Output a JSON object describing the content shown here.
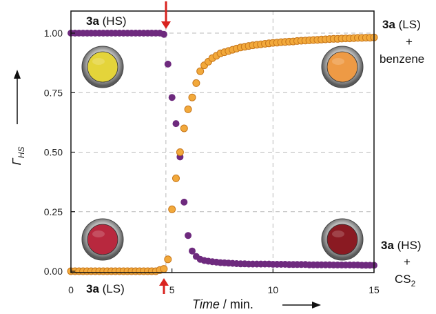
{
  "chart_data": {
    "type": "scatter",
    "xlim": [
      0,
      15
    ],
    "ylim": [
      0,
      1.05
    ],
    "xticks": [
      {
        "value": 0,
        "label": "0"
      },
      {
        "value": 5,
        "label": "5"
      },
      {
        "value": 10,
        "label": "10"
      },
      {
        "value": 15,
        "label": "15"
      }
    ],
    "yticks": [
      {
        "value": 0,
        "label": "0.00"
      },
      {
        "value": 0.25,
        "label": "0.25"
      },
      {
        "value": 0.5,
        "label": "0.50"
      },
      {
        "value": 0.75,
        "label": "0.75"
      },
      {
        "value": 1.0,
        "label": "1.00"
      }
    ],
    "grid": true,
    "x_label": {
      "italic": "Time",
      "rest": " / min."
    },
    "y_label": {
      "symbol": "Γ",
      "subscript": "HS"
    },
    "event_time": 4.7,
    "colors": {
      "orange_fill": "#F2A93B",
      "orange_edge": "#C7771C",
      "purple": "#6E2A7E",
      "arrow": "#D9231F",
      "grid": "#B8B8B8"
    },
    "series": [
      {
        "color": "purple",
        "x": [
          0.0,
          0.2,
          0.4,
          0.6,
          0.8,
          1.0,
          1.2,
          1.4,
          1.6,
          1.8,
          2.0,
          2.2,
          2.4,
          2.6,
          2.8,
          3.0,
          3.2,
          3.4,
          3.6,
          3.8,
          4.0,
          4.2,
          4.4,
          4.6,
          4.8,
          5.0,
          5.2,
          5.4,
          5.6,
          5.8,
          6.0,
          6.2,
          6.4,
          6.6,
          6.8,
          7.0,
          7.2,
          7.4,
          7.6,
          7.8,
          8.0,
          8.2,
          8.4,
          8.6,
          8.8,
          9.0,
          9.2,
          9.4,
          9.6,
          9.8,
          10.0,
          10.2,
          10.4,
          10.6,
          10.8,
          11.0,
          11.2,
          11.4,
          11.6,
          11.8,
          12.0,
          12.2,
          12.4,
          12.6,
          12.8,
          13.0,
          13.2,
          13.4,
          13.6,
          13.8,
          14.0,
          14.2,
          14.4,
          14.6,
          14.8,
          15.0
        ],
        "y": [
          1.0,
          1.0,
          1.0,
          1.0,
          1.0,
          1.0,
          1.0,
          1.0,
          1.0,
          1.0,
          1.0,
          1.0,
          1.0,
          1.0,
          1.0,
          1.0,
          1.0,
          1.0,
          1.0,
          1.0,
          1.0,
          1.0,
          1.0,
          0.995,
          0.87,
          0.73,
          0.62,
          0.48,
          0.29,
          0.15,
          0.085,
          0.062,
          0.05,
          0.045,
          0.042,
          0.04,
          0.038,
          0.036,
          0.035,
          0.034,
          0.033,
          0.032,
          0.031,
          0.031,
          0.03,
          0.03,
          0.03,
          0.03,
          0.03,
          0.03,
          0.029,
          0.029,
          0.029,
          0.029,
          0.028,
          0.028,
          0.028,
          0.028,
          0.028,
          0.027,
          0.027,
          0.027,
          0.027,
          0.027,
          0.027,
          0.026,
          0.026,
          0.026,
          0.026,
          0.026,
          0.026,
          0.026,
          0.025,
          0.025,
          0.025,
          0.025
        ]
      },
      {
        "color": "orange",
        "x": [
          0.0,
          0.2,
          0.4,
          0.6,
          0.8,
          1.0,
          1.2,
          1.4,
          1.6,
          1.8,
          2.0,
          2.2,
          2.4,
          2.6,
          2.8,
          3.0,
          3.2,
          3.4,
          3.6,
          3.8,
          4.0,
          4.2,
          4.4,
          4.6,
          4.8,
          5.0,
          5.2,
          5.4,
          5.6,
          5.8,
          6.0,
          6.2,
          6.4,
          6.6,
          6.8,
          7.0,
          7.2,
          7.4,
          7.6,
          7.8,
          8.0,
          8.2,
          8.4,
          8.6,
          8.8,
          9.0,
          9.2,
          9.4,
          9.6,
          9.8,
          10.0,
          10.2,
          10.4,
          10.6,
          10.8,
          11.0,
          11.2,
          11.4,
          11.6,
          11.8,
          12.0,
          12.2,
          12.4,
          12.6,
          12.8,
          13.0,
          13.2,
          13.4,
          13.6,
          13.8,
          14.0,
          14.2,
          14.4,
          14.6,
          14.8,
          15.0
        ],
        "y": [
          0.0,
          0.0,
          0.0,
          0.0,
          0.0,
          0.0,
          0.0,
          0.0,
          0.0,
          0.0,
          0.0,
          0.0,
          0.0,
          0.0,
          0.0,
          0.0,
          0.0,
          0.0,
          0.0,
          0.0,
          0.0,
          0.0,
          0.005,
          0.01,
          0.05,
          0.26,
          0.39,
          0.5,
          0.6,
          0.68,
          0.73,
          0.79,
          0.84,
          0.865,
          0.88,
          0.895,
          0.905,
          0.915,
          0.92,
          0.925,
          0.93,
          0.935,
          0.94,
          0.943,
          0.946,
          0.949,
          0.951,
          0.953,
          0.955,
          0.957,
          0.959,
          0.96,
          0.962,
          0.963,
          0.964,
          0.965,
          0.967,
          0.968,
          0.969,
          0.97,
          0.971,
          0.972,
          0.973,
          0.974,
          0.975,
          0.976,
          0.976,
          0.977,
          0.978,
          0.978,
          0.979,
          0.98,
          0.98,
          0.981,
          0.981,
          0.982
        ]
      }
    ],
    "annotations": {
      "top_left": {
        "bold": "3a",
        "rest": " (HS)"
      },
      "bottom_left": {
        "bold": "3a",
        "rest": " (LS)"
      },
      "top_right": {
        "bold": "3a",
        "rest": " (LS)",
        "line2": "+",
        "line3": "benzene"
      },
      "bottom_right": {
        "bold": "3a",
        "rest": " (HS)",
        "line2": "+",
        "line3": "CS",
        "line3_sub": "2"
      }
    },
    "sample_photos": [
      {
        "name": "yellow-sample-photo",
        "color": "#E4D43A"
      },
      {
        "name": "orange-sample-photo",
        "color": "#EE9A45"
      },
      {
        "name": "red-sample-photo",
        "color": "#B8283E"
      },
      {
        "name": "darkred-sample-photo",
        "color": "#8A1A22"
      }
    ]
  }
}
